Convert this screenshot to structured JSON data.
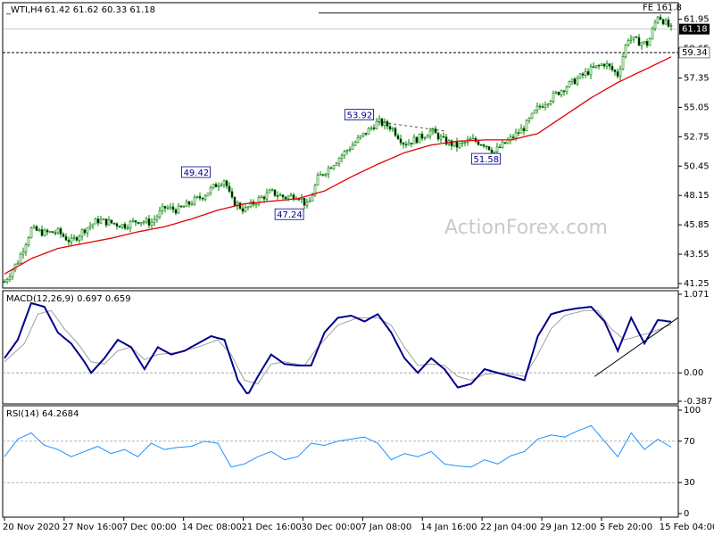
{
  "chart_data": [
    {
      "type": "candlestick",
      "title": "_WTI,H4",
      "ohlc_label": "61.42 61.62 60.33 61.18",
      "ohlc": {
        "open": 61.42,
        "high": 61.62,
        "low": 60.33,
        "close": 61.18
      },
      "yticks": [
        "61.95",
        "59.65",
        "57.35",
        "55.05",
        "52.75",
        "50.45",
        "48.15",
        "45.85",
        "43.55",
        "41.25"
      ],
      "ylim": [
        41.25,
        62.9
      ],
      "current_price": "61.18",
      "level_line": "59.34",
      "fe_label": "FE 161.8",
      "fe_level": 62.45,
      "annotations": [
        {
          "text": "49.42",
          "x": "14 Dec",
          "y": 49.42
        },
        {
          "text": "47.24",
          "x": "23 Dec",
          "y": 47.24
        },
        {
          "text": "53.92",
          "x": "5 Jan",
          "y": 53.92
        },
        {
          "text": "51.58",
          "x": "26 Jan",
          "y": 51.58
        }
      ],
      "moving_average": [
        [
          0,
          42.0
        ],
        [
          0.04,
          43.2
        ],
        [
          0.08,
          44.0
        ],
        [
          0.12,
          44.4
        ],
        [
          0.16,
          44.8
        ],
        [
          0.2,
          45.3
        ],
        [
          0.24,
          45.7
        ],
        [
          0.28,
          46.3
        ],
        [
          0.32,
          47.0
        ],
        [
          0.36,
          47.5
        ],
        [
          0.4,
          47.7
        ],
        [
          0.44,
          47.9
        ],
        [
          0.48,
          48.5
        ],
        [
          0.52,
          49.6
        ],
        [
          0.56,
          50.6
        ],
        [
          0.6,
          51.5
        ],
        [
          0.64,
          52.1
        ],
        [
          0.68,
          52.4
        ],
        [
          0.72,
          52.5
        ],
        [
          0.76,
          52.5
        ],
        [
          0.8,
          53.0
        ],
        [
          0.84,
          54.4
        ],
        [
          0.88,
          55.8
        ],
        [
          0.92,
          57.0
        ],
        [
          0.96,
          58.0
        ],
        [
          1.0,
          59.0
        ]
      ],
      "price_path": [
        [
          0,
          41.4
        ],
        [
          0.02,
          43.0
        ],
        [
          0.04,
          45.5
        ],
        [
          0.06,
          45.2
        ],
        [
          0.08,
          45.3
        ],
        [
          0.1,
          44.5
        ],
        [
          0.12,
          45.5
        ],
        [
          0.14,
          46.2
        ],
        [
          0.16,
          46.0
        ],
        [
          0.18,
          45.8
        ],
        [
          0.2,
          46.2
        ],
        [
          0.22,
          46.0
        ],
        [
          0.24,
          47.2
        ],
        [
          0.26,
          47.0
        ],
        [
          0.28,
          47.6
        ],
        [
          0.3,
          48.2
        ],
        [
          0.32,
          49.1
        ],
        [
          0.33,
          49.42
        ],
        [
          0.34,
          47.8
        ],
        [
          0.36,
          47.0
        ],
        [
          0.38,
          47.8
        ],
        [
          0.4,
          48.4
        ],
        [
          0.42,
          48.0
        ],
        [
          0.44,
          48.2
        ],
        [
          0.455,
          47.24
        ],
        [
          0.47,
          49.5
        ],
        [
          0.5,
          51.0
        ],
        [
          0.53,
          52.5
        ],
        [
          0.56,
          53.92
        ],
        [
          0.58,
          53.5
        ],
        [
          0.6,
          52.2
        ],
        [
          0.62,
          52.6
        ],
        [
          0.64,
          53.2
        ],
        [
          0.66,
          52.4
        ],
        [
          0.68,
          52.0
        ],
        [
          0.7,
          52.5
        ],
        [
          0.72,
          52.2
        ],
        [
          0.735,
          51.58
        ],
        [
          0.76,
          52.6
        ],
        [
          0.78,
          53.5
        ],
        [
          0.8,
          55.0
        ],
        [
          0.82,
          55.8
        ],
        [
          0.84,
          56.6
        ],
        [
          0.86,
          57.3
        ],
        [
          0.88,
          58.0
        ],
        [
          0.9,
          58.5
        ],
        [
          0.92,
          57.6
        ],
        [
          0.935,
          60.5
        ],
        [
          0.95,
          60.2
        ],
        [
          0.965,
          60.0
        ],
        [
          0.98,
          62.3
        ],
        [
          1.0,
          61.18
        ]
      ]
    },
    {
      "type": "line",
      "title": "MACD(12,26,9) 0.697 0.659",
      "yticks": [
        "1.071",
        "0.00",
        "-0.387"
      ],
      "ylim": [
        -0.387,
        1.071
      ],
      "series": [
        {
          "values": [
            [
              0,
              0.2
            ],
            [
              0.02,
              0.45
            ],
            [
              0.04,
              0.95
            ],
            [
              0.06,
              0.9
            ],
            [
              0.08,
              0.55
            ],
            [
              0.1,
              0.4
            ],
            [
              0.12,
              0.15
            ],
            [
              0.13,
              0.0
            ],
            [
              0.15,
              0.2
            ],
            [
              0.17,
              0.45
            ],
            [
              0.19,
              0.35
            ],
            [
              0.21,
              0.05
            ],
            [
              0.23,
              0.35
            ],
            [
              0.25,
              0.25
            ],
            [
              0.27,
              0.3
            ],
            [
              0.29,
              0.4
            ],
            [
              0.31,
              0.5
            ],
            [
              0.33,
              0.45
            ],
            [
              0.35,
              -0.1
            ],
            [
              0.365,
              -0.3
            ],
            [
              0.38,
              -0.05
            ],
            [
              0.4,
              0.25
            ],
            [
              0.42,
              0.12
            ],
            [
              0.44,
              0.1
            ],
            [
              0.46,
              0.1
            ],
            [
              0.48,
              0.55
            ],
            [
              0.5,
              0.75
            ],
            [
              0.52,
              0.78
            ],
            [
              0.54,
              0.7
            ],
            [
              0.56,
              0.8
            ],
            [
              0.58,
              0.55
            ],
            [
              0.6,
              0.2
            ],
            [
              0.62,
              0.0
            ],
            [
              0.64,
              0.2
            ],
            [
              0.66,
              0.05
            ],
            [
              0.68,
              -0.2
            ],
            [
              0.7,
              -0.15
            ],
            [
              0.72,
              0.05
            ],
            [
              0.74,
              0.0
            ],
            [
              0.76,
              -0.05
            ],
            [
              0.78,
              -0.1
            ],
            [
              0.8,
              0.5
            ],
            [
              0.82,
              0.8
            ],
            [
              0.84,
              0.85
            ],
            [
              0.86,
              0.88
            ],
            [
              0.88,
              0.9
            ],
            [
              0.9,
              0.7
            ],
            [
              0.92,
              0.3
            ],
            [
              0.94,
              0.75
            ],
            [
              0.96,
              0.4
            ],
            [
              0.98,
              0.72
            ],
            [
              1.0,
              0.697
            ]
          ]
        },
        {
          "values": [
            [
              0,
              0.15
            ],
            [
              0.03,
              0.4
            ],
            [
              0.05,
              0.8
            ],
            [
              0.07,
              0.85
            ],
            [
              0.09,
              0.6
            ],
            [
              0.11,
              0.4
            ],
            [
              0.13,
              0.15
            ],
            [
              0.15,
              0.12
            ],
            [
              0.17,
              0.3
            ],
            [
              0.19,
              0.35
            ],
            [
              0.21,
              0.18
            ],
            [
              0.23,
              0.25
            ],
            [
              0.26,
              0.28
            ],
            [
              0.29,
              0.35
            ],
            [
              0.32,
              0.45
            ],
            [
              0.34,
              0.25
            ],
            [
              0.36,
              -0.1
            ],
            [
              0.38,
              -0.15
            ],
            [
              0.4,
              0.12
            ],
            [
              0.42,
              0.15
            ],
            [
              0.45,
              0.1
            ],
            [
              0.47,
              0.35
            ],
            [
              0.5,
              0.65
            ],
            [
              0.53,
              0.75
            ],
            [
              0.56,
              0.75
            ],
            [
              0.58,
              0.65
            ],
            [
              0.6,
              0.35
            ],
            [
              0.62,
              0.1
            ],
            [
              0.64,
              0.12
            ],
            [
              0.66,
              0.1
            ],
            [
              0.68,
              -0.05
            ],
            [
              0.7,
              -0.1
            ],
            [
              0.72,
              -0.02
            ],
            [
              0.75,
              0.0
            ],
            [
              0.78,
              -0.05
            ],
            [
              0.8,
              0.25
            ],
            [
              0.82,
              0.6
            ],
            [
              0.84,
              0.78
            ],
            [
              0.87,
              0.85
            ],
            [
              0.89,
              0.85
            ],
            [
              0.91,
              0.6
            ],
            [
              0.93,
              0.45
            ],
            [
              0.95,
              0.5
            ],
            [
              0.97,
              0.55
            ],
            [
              1.0,
              0.659
            ]
          ]
        }
      ]
    },
    {
      "type": "line",
      "title": "RSI(14) 64.2684",
      "yticks": [
        "100",
        "70",
        "30",
        "0"
      ],
      "ylim": [
        0,
        100
      ],
      "series": [
        {
          "values": [
            [
              0,
              55
            ],
            [
              0.02,
              72
            ],
            [
              0.04,
              78
            ],
            [
              0.06,
              66
            ],
            [
              0.08,
              62
            ],
            [
              0.1,
              55
            ],
            [
              0.12,
              60
            ],
            [
              0.14,
              65
            ],
            [
              0.16,
              58
            ],
            [
              0.18,
              62
            ],
            [
              0.2,
              55
            ],
            [
              0.22,
              68
            ],
            [
              0.24,
              62
            ],
            [
              0.26,
              64
            ],
            [
              0.28,
              65
            ],
            [
              0.3,
              70
            ],
            [
              0.32,
              68
            ],
            [
              0.34,
              45
            ],
            [
              0.36,
              48
            ],
            [
              0.38,
              55
            ],
            [
              0.4,
              60
            ],
            [
              0.42,
              52
            ],
            [
              0.44,
              55
            ],
            [
              0.46,
              68
            ],
            [
              0.48,
              66
            ],
            [
              0.5,
              70
            ],
            [
              0.52,
              72
            ],
            [
              0.54,
              74
            ],
            [
              0.56,
              68
            ],
            [
              0.58,
              52
            ],
            [
              0.6,
              58
            ],
            [
              0.62,
              55
            ],
            [
              0.64,
              60
            ],
            [
              0.66,
              48
            ],
            [
              0.68,
              46
            ],
            [
              0.7,
              45
            ],
            [
              0.72,
              52
            ],
            [
              0.74,
              48
            ],
            [
              0.76,
              56
            ],
            [
              0.78,
              60
            ],
            [
              0.8,
              72
            ],
            [
              0.82,
              76
            ],
            [
              0.84,
              74
            ],
            [
              0.86,
              80
            ],
            [
              0.88,
              85
            ],
            [
              0.9,
              70
            ],
            [
              0.92,
              55
            ],
            [
              0.94,
              78
            ],
            [
              0.96,
              62
            ],
            [
              0.98,
              72
            ],
            [
              1.0,
              64.27
            ]
          ]
        }
      ]
    }
  ],
  "xticks": [
    "20 Nov 2020",
    "27 Nov 16:00",
    "7 Dec 00:00",
    "14 Dec 08:00",
    "21 Dec 16:00",
    "30 Dec 00:00",
    "7 Jan 08:00",
    "14 Jan 16:00",
    "22 Jan 04:00",
    "29 Jan 12:00",
    "5 Feb 20:00",
    "15 Feb 04:00"
  ],
  "watermark": "ActionForex.com",
  "colors": {
    "bull": "#008000",
    "bear": "#008000",
    "ma": "#e00000",
    "macd": "#00008b",
    "signal": "#a0a0a0",
    "rsi": "#1e90ff",
    "annotation": "#00008b"
  }
}
